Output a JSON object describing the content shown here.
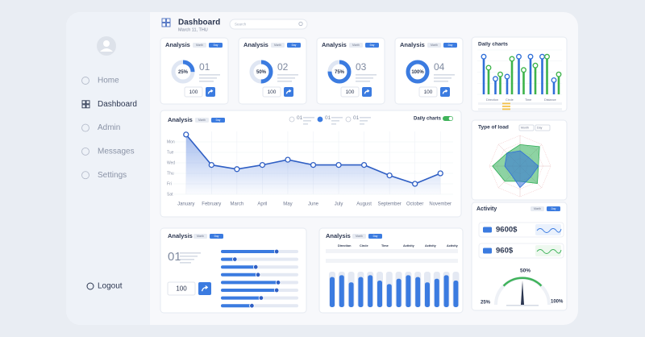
{
  "sidebar": {
    "menu": [
      "Home",
      "Dashboard",
      "Admin",
      "Messages",
      "Settings"
    ],
    "logout": "Logout"
  },
  "header": {
    "title": "Dashboard",
    "date": "March 11, THU",
    "search": "Search"
  },
  "cards": [
    {
      "title": "Analysis",
      "tabs": [
        "Month",
        "Day"
      ],
      "gauge": 25,
      "gauge_label": "25%",
      "number": "01",
      "button": 100
    },
    {
      "title": "Analysis",
      "tabs": [
        "Month",
        "Day"
      ],
      "gauge": 50,
      "gauge_label": "50%",
      "number": "02",
      "button": 100
    },
    {
      "title": "Analysis",
      "tabs": [
        "Month",
        "Day"
      ],
      "gauge": 75,
      "gauge_label": "75%",
      "number": "03",
      "button": 100
    },
    {
      "title": "Analysis",
      "tabs": [
        "Month",
        "Day"
      ],
      "gauge": 100,
      "gauge_label": "100%",
      "number": "04",
      "button": 100
    }
  ],
  "line_chart": {
    "type": "line",
    "title": "Analysis",
    "tabs": [
      "Month",
      "Day"
    ],
    "legend": [
      "01",
      "01",
      "01"
    ],
    "toggle": "Daily charts",
    "categories": [
      "January",
      "February",
      "March",
      "April",
      "May",
      "June",
      "July",
      "August",
      "September",
      "October",
      "November"
    ],
    "ylim": [
      0,
      6
    ],
    "yticks": [
      {
        "value": 5,
        "label": "Mon"
      },
      {
        "value": 4,
        "label": "Tue"
      },
      {
        "value": 3,
        "label": "Wed"
      },
      {
        "value": 2,
        "label": "Thu"
      },
      {
        "value": 1,
        "label": "Fri"
      },
      {
        "value": 0,
        "label": "Sat"
      }
    ],
    "series": [
      {
        "color": "#2f5fc4",
        "values": [
          5.7,
          2.8,
          2.4,
          2.8,
          3.3,
          2.8,
          2.8,
          2.8,
          1.8,
          1.0,
          2.0
        ]
      }
    ]
  },
  "daily_charts": {
    "type": "bar",
    "title": "Daily charts",
    "ylim": [
      0,
      10
    ],
    "series": [
      {
        "color": "#2f6fd8",
        "values": [
          8.5,
          3.5,
          4,
          8.5,
          8.5,
          8.5,
          3.2
        ]
      },
      {
        "color": "#3db34a",
        "values": [
          6,
          4.5,
          8,
          5.5,
          6.5,
          8.5,
          4.5
        ]
      }
    ],
    "table": {
      "columns": [
        "Direction",
        "Circle",
        "Time",
        "Distance"
      ]
    }
  },
  "type_of_load": {
    "type": "radar",
    "title": "Type of load",
    "dropdowns": [
      "Month",
      "Day"
    ],
    "rlim": [
      0,
      10
    ],
    "series": [
      {
        "color": "#2fae57",
        "values": [
          7,
          9,
          6,
          8,
          5,
          7,
          9,
          6
        ]
      },
      {
        "color": "#2f6fd8",
        "values": [
          5,
          4,
          6,
          5,
          7,
          4,
          5,
          6
        ]
      }
    ]
  },
  "activity": {
    "title": "Activity",
    "tabs": [
      "Month",
      "Day"
    ],
    "items": [
      "9600$",
      "960$"
    ]
  },
  "gauge": {
    "type": "gauge",
    "value": 50,
    "label": "50%",
    "ends": [
      "25%",
      "100%"
    ],
    "lim": [
      0,
      100
    ]
  },
  "bottom_analysis": {
    "title": "Analysis",
    "tabs": [
      "Month",
      "Day"
    ],
    "number": "01",
    "button": 100,
    "sliders": {
      "type": "bar",
      "xlim": [
        0,
        100
      ],
      "values": [
        72,
        18,
        45,
        48,
        74,
        72,
        52,
        40
      ]
    }
  },
  "table_analysis": {
    "title": "Analysis",
    "tabs": [
      "Month",
      "Day"
    ],
    "columns": [
      "Direction",
      "Circle",
      "Time",
      "Activity",
      "Activity",
      "Activity"
    ],
    "bars": {
      "type": "bar",
      "ylim": [
        0,
        100
      ],
      "values": [
        85,
        90,
        70,
        85,
        90,
        75,
        65,
        80,
        90,
        85,
        70,
        80,
        90,
        75
      ]
    }
  }
}
